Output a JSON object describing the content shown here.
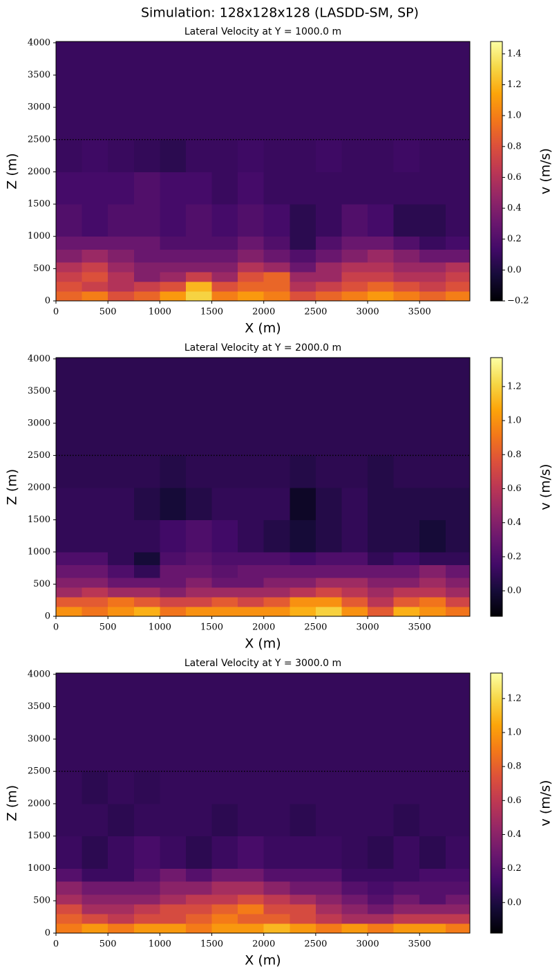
{
  "title": "Simulation: 128x128x128 (LASDD-SM, SP)",
  "chart_data": [
    {
      "type": "heatmap",
      "title": "Lateral Velocity at Y = 1000.0 m",
      "xlabel": "X (m)",
      "ylabel": "Z (m)",
      "colorbar_label": "v (m/s)",
      "colormap": "inferno",
      "xlim": [
        0,
        3984
      ],
      "ylim": [
        0,
        4020
      ],
      "xticks": [
        0,
        500,
        1000,
        1500,
        2000,
        2500,
        3000,
        3500
      ],
      "yticks": [
        0,
        500,
        1000,
        1500,
        2000,
        2500,
        3000,
        3500,
        4000
      ],
      "hline": 2500,
      "clim": [
        -0.2,
        1.48
      ],
      "cticks": [
        {
          "value": -0.2,
          "label": "−0.2"
        },
        {
          "value": 0,
          "label": "0.0"
        },
        0.2,
        0.4,
        0.6,
        0.8,
        {
          "value": 1,
          "label": "1.0"
        },
        1.2,
        1.4
      ],
      "xbins": [
        0,
        250,
        500,
        750,
        1000,
        1250,
        1500,
        1750,
        2000,
        2250,
        2500,
        2750,
        3000,
        3250,
        3500,
        3750,
        3984
      ],
      "ybins": [
        0,
        150,
        300,
        450,
        600,
        800,
        1000,
        1500,
        2000,
        2500,
        4020
      ],
      "z": [
        [
          0.9,
          1.0,
          0.8,
          0.9,
          1.1,
          1.3,
          1.0,
          1.1,
          1.0,
          0.8,
          0.9,
          1.0,
          1.1,
          1.0,
          0.9,
          1.0
        ],
        [
          0.8,
          0.7,
          0.6,
          0.7,
          0.8,
          1.2,
          0.8,
          0.9,
          0.9,
          0.6,
          0.7,
          0.8,
          0.9,
          0.8,
          0.7,
          0.8
        ],
        [
          0.7,
          0.8,
          0.6,
          0.4,
          0.5,
          0.7,
          0.5,
          0.8,
          0.9,
          0.5,
          0.5,
          0.7,
          0.7,
          0.6,
          0.6,
          0.7
        ],
        [
          0.6,
          0.7,
          0.5,
          0.4,
          0.4,
          0.4,
          0.4,
          0.6,
          0.5,
          0.3,
          0.5,
          0.6,
          0.6,
          0.5,
          0.5,
          0.6
        ],
        [
          0.4,
          0.5,
          0.4,
          0.3,
          0.3,
          0.3,
          0.3,
          0.4,
          0.3,
          0.2,
          0.3,
          0.4,
          0.5,
          0.4,
          0.3,
          0.3
        ],
        [
          0.3,
          0.3,
          0.3,
          0.3,
          0.2,
          0.2,
          0.2,
          0.3,
          0.2,
          0.05,
          0.2,
          0.3,
          0.3,
          0.2,
          0.1,
          0.15
        ],
        [
          0.2,
          0.15,
          0.2,
          0.2,
          0.15,
          0.2,
          0.15,
          0.2,
          0.15,
          0.05,
          0.1,
          0.2,
          0.15,
          0.05,
          0.05,
          0.1
        ],
        [
          0.15,
          0.15,
          0.15,
          0.2,
          0.15,
          0.15,
          0.1,
          0.15,
          0.1,
          0.1,
          0.1,
          0.1,
          0.1,
          0.1,
          0.1,
          0.1
        ],
        [
          0.1,
          0.12,
          0.1,
          0.08,
          0.05,
          0.1,
          0.1,
          0.12,
          0.1,
          0.1,
          0.12,
          0.1,
          0.1,
          0.12,
          0.1,
          0.1
        ],
        [
          0.1,
          0.1,
          0.1,
          0.1,
          0.1,
          0.1,
          0.1,
          0.1,
          0.1,
          0.1,
          0.1,
          0.1,
          0.1,
          0.1,
          0.1,
          0.1
        ]
      ]
    },
    {
      "type": "heatmap",
      "title": "Lateral Velocity at Y = 2000.0 m",
      "xlabel": "X (m)",
      "ylabel": "Z (m)",
      "colorbar_label": "v (m/s)",
      "colormap": "inferno",
      "xlim": [
        0,
        3984
      ],
      "ylim": [
        0,
        4020
      ],
      "xticks": [
        0,
        500,
        1000,
        1500,
        2000,
        2500,
        3000,
        3500
      ],
      "yticks": [
        0,
        500,
        1000,
        1500,
        2000,
        2500,
        3000,
        3500,
        4000
      ],
      "hline": 2500,
      "clim": [
        -0.15,
        1.37
      ],
      "cticks": [
        {
          "value": 0,
          "label": "0.0"
        },
        0.2,
        0.4,
        0.6,
        0.8,
        {
          "value": 1,
          "label": "1.0"
        },
        1.2
      ],
      "xbins": [
        0,
        250,
        500,
        750,
        1000,
        1250,
        1500,
        1750,
        2000,
        2250,
        2500,
        2750,
        3000,
        3250,
        3500,
        3750,
        3984
      ],
      "ybins": [
        0,
        150,
        300,
        450,
        600,
        800,
        1000,
        1500,
        2000,
        2500,
        4020
      ],
      "z": [
        [
          1.0,
          0.9,
          1.0,
          1.1,
          0.9,
          1.0,
          1.0,
          1.0,
          1.0,
          1.1,
          1.2,
          1.0,
          0.8,
          1.1,
          1.0,
          0.9
        ],
        [
          0.8,
          0.8,
          0.9,
          0.8,
          0.7,
          0.7,
          0.8,
          0.7,
          0.8,
          1.0,
          1.0,
          0.8,
          0.6,
          0.8,
          0.9,
          0.7
        ],
        [
          0.5,
          0.6,
          0.5,
          0.5,
          0.4,
          0.5,
          0.5,
          0.5,
          0.5,
          0.6,
          0.7,
          0.6,
          0.5,
          0.6,
          0.6,
          0.5
        ],
        [
          0.4,
          0.4,
          0.3,
          0.3,
          0.3,
          0.4,
          0.3,
          0.3,
          0.4,
          0.4,
          0.5,
          0.5,
          0.4,
          0.4,
          0.5,
          0.4
        ],
        [
          0.3,
          0.3,
          0.2,
          0.1,
          0.3,
          0.3,
          0.25,
          0.3,
          0.3,
          0.3,
          0.3,
          0.3,
          0.3,
          0.3,
          0.4,
          0.3
        ],
        [
          0.2,
          0.2,
          0.1,
          0.0,
          0.2,
          0.25,
          0.2,
          0.2,
          0.2,
          0.15,
          0.2,
          0.2,
          0.1,
          0.15,
          0.1,
          0.1
        ],
        [
          0.1,
          0.1,
          0.1,
          0.1,
          0.15,
          0.2,
          0.15,
          0.1,
          0.05,
          0.0,
          0.05,
          0.1,
          0.05,
          0.05,
          0.0,
          0.05
        ],
        [
          0.1,
          0.1,
          0.1,
          0.05,
          0.0,
          0.05,
          0.1,
          0.1,
          0.1,
          -0.05,
          0.05,
          0.1,
          0.05,
          0.05,
          0.05,
          0.05
        ],
        [
          0.08,
          0.08,
          0.08,
          0.08,
          0.05,
          0.08,
          0.08,
          0.08,
          0.08,
          0.05,
          0.08,
          0.08,
          0.05,
          0.08,
          0.08,
          0.08
        ],
        [
          0.08,
          0.08,
          0.08,
          0.08,
          0.08,
          0.08,
          0.08,
          0.08,
          0.08,
          0.08,
          0.08,
          0.08,
          0.08,
          0.08,
          0.08,
          0.08
        ]
      ]
    },
    {
      "type": "heatmap",
      "title": "Lateral Velocity at Y = 3000.0 m",
      "xlabel": "X (m)",
      "ylabel": "Z (m)",
      "colorbar_label": "v (m/s)",
      "colormap": "inferno",
      "xlim": [
        0,
        3984
      ],
      "ylim": [
        0,
        4020
      ],
      "xticks": [
        0,
        500,
        1000,
        1500,
        2000,
        2500,
        3000,
        3500
      ],
      "yticks": [
        0,
        500,
        1000,
        1500,
        2000,
        2500,
        3000,
        3500,
        4000
      ],
      "hline": 2500,
      "clim": [
        -0.18,
        1.35
      ],
      "cticks": [
        {
          "value": 0,
          "label": "0.0"
        },
        0.2,
        0.4,
        0.6,
        0.8,
        {
          "value": 1,
          "label": "1.0"
        },
        1.2
      ],
      "xbins": [
        0,
        250,
        500,
        750,
        1000,
        1250,
        1500,
        1750,
        2000,
        2250,
        2500,
        2750,
        3000,
        3250,
        3500,
        3750,
        3984
      ],
      "ybins": [
        0,
        150,
        300,
        450,
        600,
        800,
        1000,
        1500,
        2000,
        2500,
        4020
      ],
      "z": [
        [
          0.9,
          1.0,
          0.9,
          1.0,
          1.0,
          0.9,
          1.0,
          1.0,
          1.1,
          1.0,
          0.9,
          1.0,
          0.9,
          1.0,
          1.0,
          0.9
        ],
        [
          0.8,
          0.7,
          0.6,
          0.7,
          0.7,
          0.8,
          0.9,
          0.8,
          0.8,
          0.7,
          0.6,
          0.5,
          0.5,
          0.6,
          0.6,
          0.6
        ],
        [
          0.7,
          0.5,
          0.5,
          0.6,
          0.7,
          0.7,
          0.8,
          0.9,
          0.7,
          0.7,
          0.5,
          0.4,
          0.3,
          0.4,
          0.4,
          0.4
        ],
        [
          0.5,
          0.4,
          0.4,
          0.4,
          0.5,
          0.6,
          0.6,
          0.7,
          0.6,
          0.5,
          0.4,
          0.3,
          0.2,
          0.3,
          0.2,
          0.3
        ],
        [
          0.4,
          0.3,
          0.3,
          0.3,
          0.4,
          0.4,
          0.5,
          0.5,
          0.4,
          0.3,
          0.3,
          0.2,
          0.15,
          0.2,
          0.2,
          0.2
        ],
        [
          0.2,
          0.1,
          0.1,
          0.2,
          0.3,
          0.2,
          0.3,
          0.3,
          0.2,
          0.2,
          0.2,
          0.1,
          0.1,
          0.1,
          0.15,
          0.15
        ],
        [
          0.1,
          0.05,
          0.1,
          0.15,
          0.1,
          0.05,
          0.1,
          0.15,
          0.1,
          0.1,
          0.1,
          0.08,
          0.05,
          0.1,
          0.05,
          0.1
        ],
        [
          0.08,
          0.08,
          0.05,
          0.08,
          0.08,
          0.08,
          0.05,
          0.08,
          0.08,
          0.05,
          0.08,
          0.08,
          0.08,
          0.05,
          0.08,
          0.08
        ],
        [
          0.08,
          0.05,
          0.08,
          0.06,
          0.08,
          0.08,
          0.08,
          0.08,
          0.08,
          0.08,
          0.08,
          0.08,
          0.08,
          0.08,
          0.08,
          0.08
        ],
        [
          0.08,
          0.08,
          0.08,
          0.08,
          0.08,
          0.08,
          0.08,
          0.08,
          0.08,
          0.08,
          0.08,
          0.08,
          0.08,
          0.08,
          0.08,
          0.08
        ]
      ]
    }
  ]
}
